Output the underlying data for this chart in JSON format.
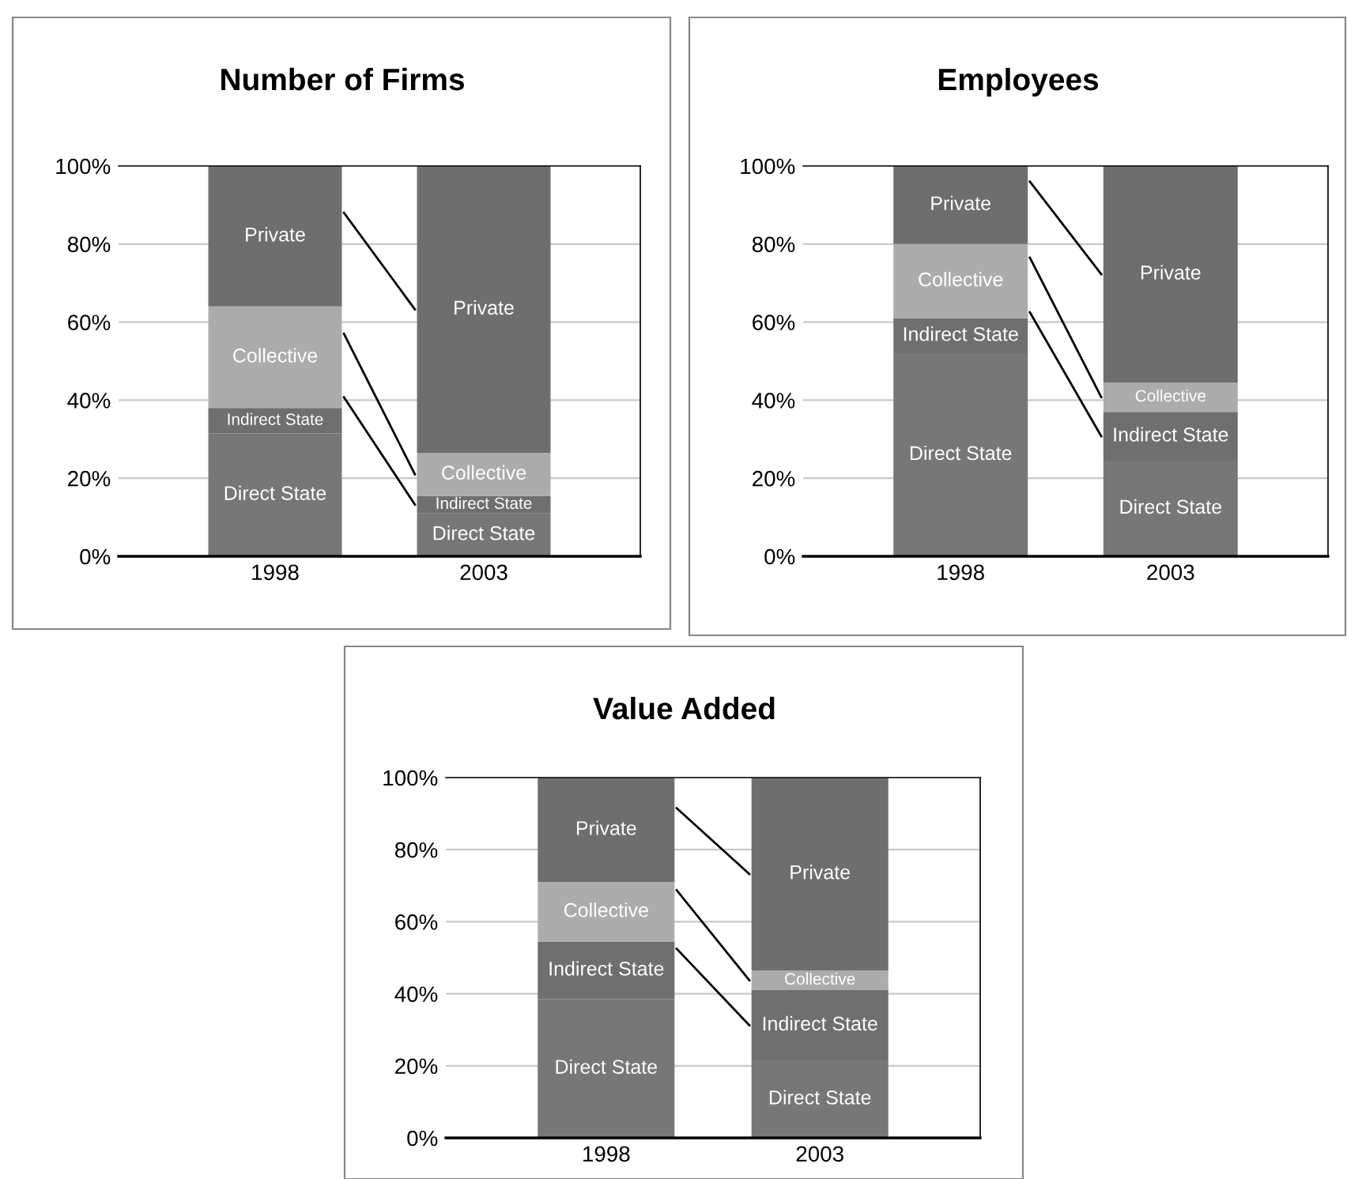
{
  "chart_data": [
    {
      "type": "bar",
      "title": "Number of Firms",
      "stacked": true,
      "categories": [
        "1998",
        "2003"
      ],
      "ylim": [
        0,
        100
      ],
      "yticks": [
        {
          "value": 0,
          "label": "0%"
        },
        {
          "value": 20,
          "label": "20%"
        },
        {
          "value": 40,
          "label": "40%"
        },
        {
          "value": 60,
          "label": "60%"
        },
        {
          "value": 80,
          "label": "80%"
        },
        {
          "value": 100,
          "label": "100%"
        }
      ],
      "grid": "y",
      "legend": false,
      "series": [
        {
          "name": "Direct State",
          "color": "#777777",
          "values": [
            31.5,
            11
          ]
        },
        {
          "name": "Indirect State",
          "color": "#6f6f6f",
          "values": [
            6.5,
            4.5
          ]
        },
        {
          "name": "Collective",
          "color": "#acacac",
          "values": [
            26,
            11
          ]
        },
        {
          "name": "Private",
          "color": "#6e6e6e",
          "values": [
            36,
            73.5
          ]
        }
      ]
    },
    {
      "type": "bar",
      "title": "Employees",
      "stacked": true,
      "categories": [
        "1998",
        "2003"
      ],
      "ylim": [
        0,
        100
      ],
      "yticks": [
        {
          "value": 0,
          "label": "0%"
        },
        {
          "value": 20,
          "label": "20%"
        },
        {
          "value": 40,
          "label": "40%"
        },
        {
          "value": 60,
          "label": "60%"
        },
        {
          "value": 80,
          "label": "80%"
        },
        {
          "value": 100,
          "label": "100%"
        }
      ],
      "grid": "y",
      "legend": false,
      "series": [
        {
          "name": "Direct State",
          "color": "#777777",
          "values": [
            52,
            24.5
          ]
        },
        {
          "name": "Indirect State",
          "color": "#6f6f6f",
          "values": [
            9,
            12.5
          ]
        },
        {
          "name": "Collective",
          "color": "#acacac",
          "values": [
            19,
            7.5
          ]
        },
        {
          "name": "Private",
          "color": "#6e6e6e",
          "values": [
            20,
            55.5
          ]
        }
      ]
    },
    {
      "type": "bar",
      "title": "Value Added",
      "stacked": true,
      "categories": [
        "1998",
        "2003"
      ],
      "ylim": [
        0,
        100
      ],
      "yticks": [
        {
          "value": 0,
          "label": "0%"
        },
        {
          "value": 20,
          "label": "20%"
        },
        {
          "value": 40,
          "label": "40%"
        },
        {
          "value": 60,
          "label": "60%"
        },
        {
          "value": 80,
          "label": "80%"
        },
        {
          "value": 100,
          "label": "100%"
        }
      ],
      "grid": "y",
      "legend": false,
      "series": [
        {
          "name": "Direct State",
          "color": "#777777",
          "values": [
            38.5,
            21.5
          ]
        },
        {
          "name": "Indirect State",
          "color": "#6f6f6f",
          "values": [
            16,
            19.5
          ]
        },
        {
          "name": "Collective",
          "color": "#acacac",
          "values": [
            16.5,
            5.5
          ]
        },
        {
          "name": "Private",
          "color": "#6e6e6e",
          "values": [
            29,
            53.5
          ]
        }
      ]
    }
  ]
}
